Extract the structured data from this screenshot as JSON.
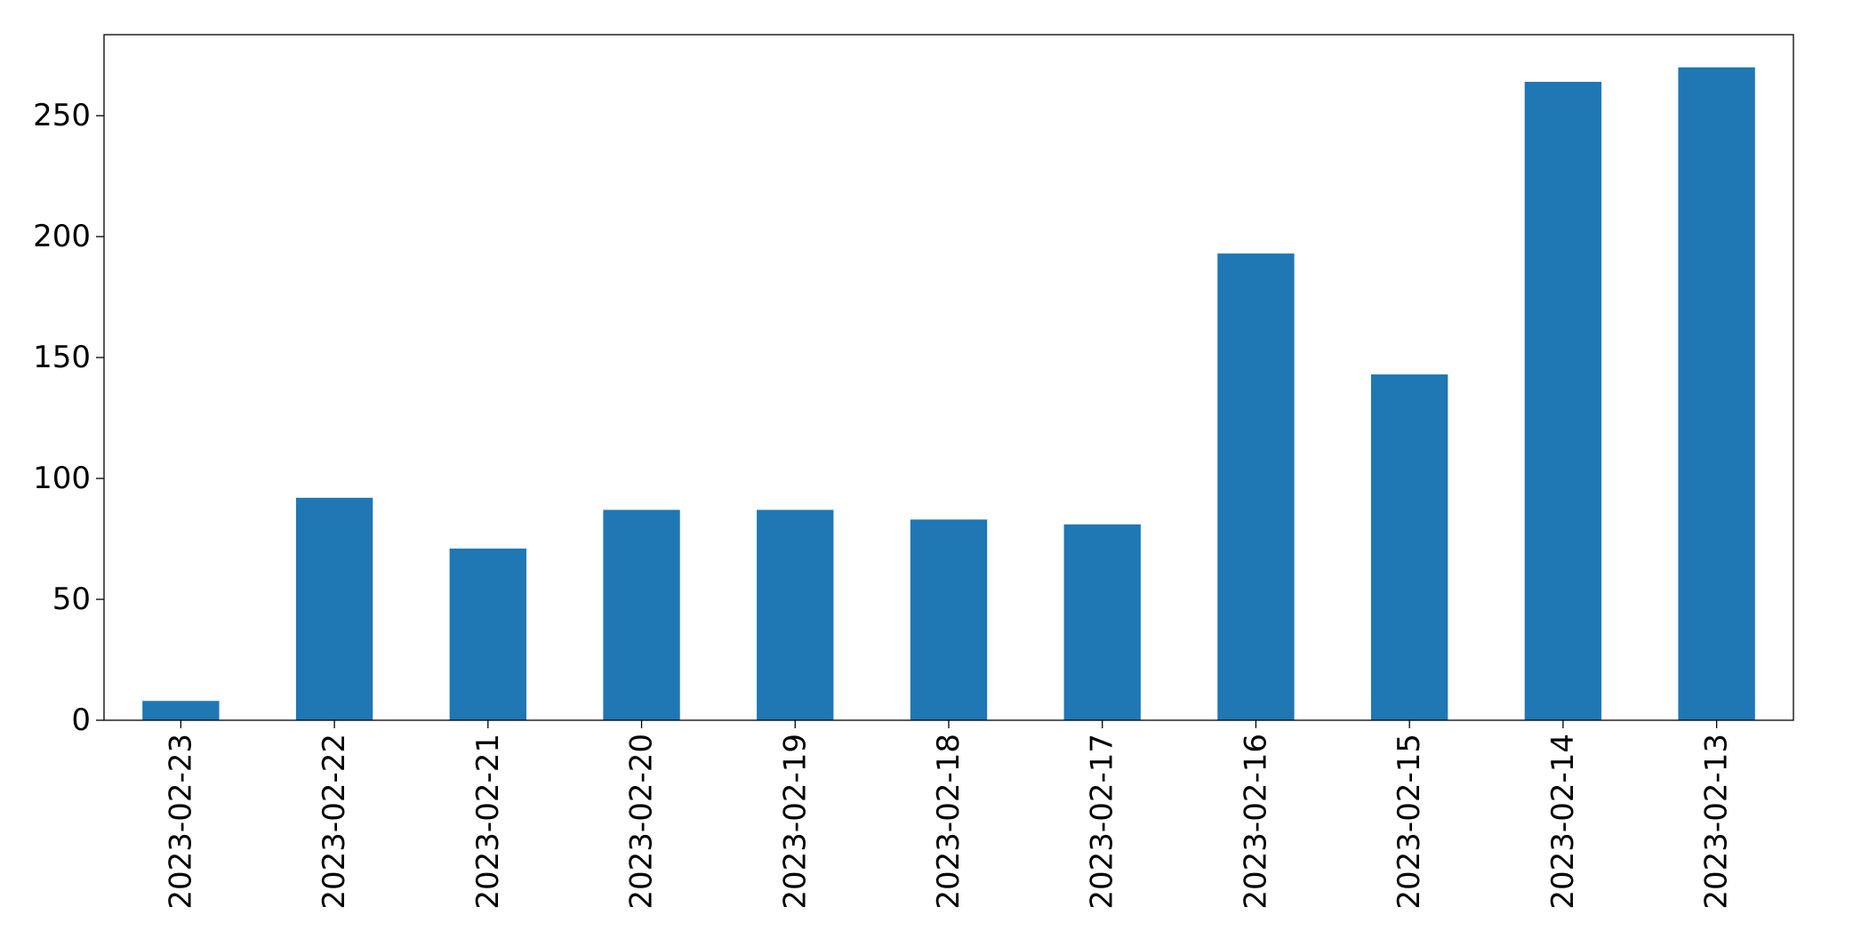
{
  "chart_data": {
    "type": "bar",
    "title": "",
    "xlabel": "",
    "ylabel": "",
    "categories": [
      "2023-02-23",
      "2023-02-22",
      "2023-02-21",
      "2023-02-20",
      "2023-02-19",
      "2023-02-18",
      "2023-02-17",
      "2023-02-16",
      "2023-02-15",
      "2023-02-14",
      "2023-02-13"
    ],
    "values": [
      8,
      92,
      71,
      87,
      87,
      83,
      81,
      193,
      143,
      264,
      270
    ],
    "ylim": [
      0,
      283.5
    ],
    "yticks": [
      0,
      50,
      100,
      150,
      200,
      250
    ],
    "grid": false,
    "legend": "none",
    "colors": {
      "bar": "#1f77b4",
      "axis": "#000000",
      "background": "#ffffff"
    }
  }
}
